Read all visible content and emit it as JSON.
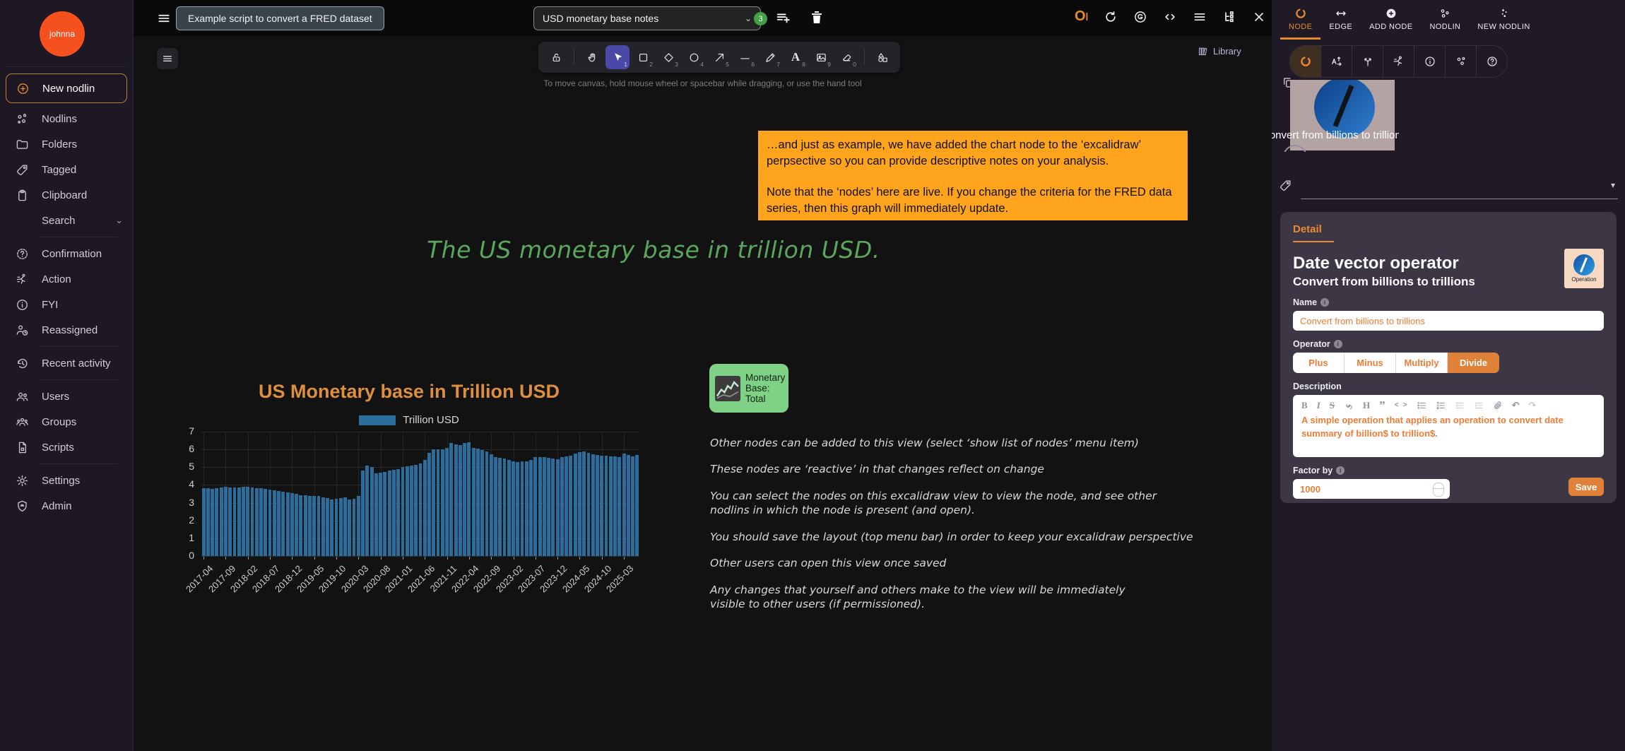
{
  "app": {
    "user": "johnna"
  },
  "colors": {
    "accent_orange": "#e8892f",
    "button_orange": "#e0813a",
    "field_text_orange": "#ee7c36",
    "note_orange": "#ffa41c",
    "title_green": "#58a75c",
    "node_green": "#7fd186",
    "bar_blue": "#2d6d9c",
    "badge_green": "#43a047",
    "tool_active_violet": "#4b49a8"
  },
  "topbar": {
    "script_button": "Example script to convert a FRED dataset",
    "view_select": "USD monetary base notes",
    "badge_count": "3"
  },
  "sidebar": {
    "items": [
      {
        "label": "New nodlin"
      },
      {
        "label": "Nodlins"
      },
      {
        "label": "Folders"
      },
      {
        "label": "Tagged"
      },
      {
        "label": "Clipboard"
      },
      {
        "label": "Search"
      },
      {
        "label": "Confirmation"
      },
      {
        "label": "Action"
      },
      {
        "label": "FYI"
      },
      {
        "label": "Reassigned"
      },
      {
        "label": "Recent activity"
      },
      {
        "label": "Users"
      },
      {
        "label": "Groups"
      },
      {
        "label": "Scripts"
      },
      {
        "label": "Settings"
      },
      {
        "label": "Admin"
      }
    ]
  },
  "canvas": {
    "helper_text": "To move canvas, hold mouse wheel or spacebar while dragging, or use the hand tool",
    "library_label": "Library",
    "tool_shortcuts": {
      "selection": "1",
      "rectangle": "2",
      "diamond": "3",
      "ellipse": "4",
      "arrow": "5",
      "line": "6",
      "draw": "7",
      "text": "8",
      "image": "9",
      "eraser": "0"
    },
    "note": {
      "p1": "…and just as example, we have added the chart node to the ‘excalidraw’ perpsective so you can provide descriptive notes on your analysis.",
      "p2": "Note that the ‘nodes’ here are live.  If you change the criteria for the FRED data series, then this graph will immediately update."
    },
    "title": "The US monetary base in trillion USD.",
    "node": {
      "lines": [
        "Monetary",
        "Base:",
        "Total"
      ]
    },
    "paragraphs": [
      "Other nodes can be added to this view (select ‘show list of nodes’ menu item)",
      "These nodes are ‘reactive’ in that changes reflect on change",
      "You can select the nodes on this excalidraw view to view the node, and see other nodlins in which the node is present (and open).",
      "You should save the layout (top menu bar) in order to keep your excalidraw perspective",
      "Other users can open this view once saved",
      "Any changes that yourself and others make to the view will be immediately visible to other users (if permissioned)."
    ]
  },
  "chart_data": {
    "type": "bar",
    "title": "US Monetary base in Trillion USD",
    "legend": [
      "Trillion USD"
    ],
    "legend_position": "top",
    "xlabel": "",
    "ylabel": "",
    "ylim": [
      0,
      7
    ],
    "yticks": [
      0,
      1,
      2,
      3,
      4,
      5,
      6,
      7
    ],
    "grid": true,
    "bar_color": "#2d6d9c",
    "tick_every": 5,
    "tick_labels": [
      "2017-04",
      "2017-09",
      "2018-02",
      "2018-07",
      "2018-12",
      "2019-05",
      "2019-10",
      "2020-03",
      "2020-08",
      "2021-01",
      "2021-06",
      "2021-11",
      "2022-04",
      "2022-09",
      "2023-02",
      "2023-07",
      "2023-12",
      "2024-05",
      "2024-10",
      "2025-03"
    ],
    "values": [
      3.81,
      3.8,
      3.79,
      3.8,
      3.85,
      3.88,
      3.87,
      3.84,
      3.85,
      3.89,
      3.88,
      3.86,
      3.83,
      3.8,
      3.77,
      3.72,
      3.68,
      3.64,
      3.61,
      3.59,
      3.56,
      3.49,
      3.44,
      3.41,
      3.39,
      3.37,
      3.4,
      3.32,
      3.26,
      3.18,
      3.24,
      3.27,
      3.3,
      3.17,
      3.22,
      3.4,
      4.8,
      5.1,
      5.0,
      4.66,
      4.7,
      4.75,
      4.8,
      4.85,
      4.9,
      5.0,
      5.04,
      5.1,
      5.15,
      5.2,
      5.42,
      5.8,
      6.0,
      6.0,
      6.02,
      6.08,
      6.35,
      6.3,
      6.25,
      6.36,
      6.4,
      6.1,
      6.05,
      5.98,
      5.88,
      5.73,
      5.58,
      5.52,
      5.48,
      5.4,
      5.32,
      5.28,
      5.34,
      5.35,
      5.4,
      5.55,
      5.56,
      5.55,
      5.54,
      5.5,
      5.46,
      5.55,
      5.6,
      5.65,
      5.76,
      5.86,
      5.9,
      5.8,
      5.72,
      5.68,
      5.66,
      5.64,
      5.62,
      5.6,
      5.57,
      5.75,
      5.68,
      5.6,
      5.7
    ]
  },
  "right_panel": {
    "tabs": [
      "NODE",
      "EDGE",
      "ADD NODE",
      "NODLIN",
      "NEW NODLIN"
    ],
    "active_tab": "NODE",
    "preview_name": "Convert from billions to trillions",
    "detail": {
      "tab_label": "Detail",
      "title": "Date vector operator",
      "subtitle": "Convert from billions to trillions",
      "badge_label": "Operation",
      "name_label": "Name",
      "name_value": "Convert from billions to trillions",
      "operator_label": "Operator",
      "operators": [
        "Plus",
        "Minus",
        "Multiply",
        "Divide"
      ],
      "selected_operator": "Divide",
      "description_label": "Description",
      "description_value": "A simple operation that applies an operation to convert date summary of billion$ to trillion$.",
      "factor_label": "Factor by",
      "factor_value": "1000",
      "save_label": "Save"
    }
  },
  "glyphs": {
    "bold": "B",
    "italic": "I",
    "strikethrough": "S",
    "heading": "H",
    "quote": "”",
    "code": "< >",
    "undo": "↶",
    "redo": "↷"
  }
}
